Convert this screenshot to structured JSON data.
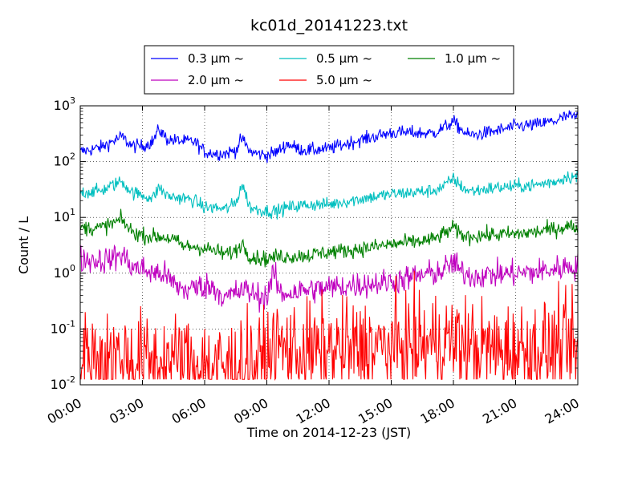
{
  "chart_data": {
    "type": "line",
    "title": "kc01d_20141223.txt",
    "xlabel": "Time on 2014-12-23 (JST)",
    "ylabel": "Count / L",
    "x_unit": "hours",
    "xlim": [
      0,
      24
    ],
    "ylim": [
      0.01,
      1000
    ],
    "yscale": "log",
    "grid": true,
    "legend_position": "top-center",
    "x_ticks": [
      {
        "value": 0,
        "label": "00:00"
      },
      {
        "value": 3,
        "label": "03:00"
      },
      {
        "value": 6,
        "label": "06:00"
      },
      {
        "value": 9,
        "label": "09:00"
      },
      {
        "value": 12,
        "label": "12:00"
      },
      {
        "value": 15,
        "label": "15:00"
      },
      {
        "value": 18,
        "label": "18:00"
      },
      {
        "value": 21,
        "label": "21:00"
      },
      {
        "value": 24,
        "label": "24:00"
      }
    ],
    "y_ticks": [
      {
        "value": 0.01,
        "base": "10",
        "exp": "-2"
      },
      {
        "value": 0.1,
        "base": "10",
        "exp": "-1"
      },
      {
        "value": 1,
        "base": "10",
        "exp": "0"
      },
      {
        "value": 10,
        "base": "10",
        "exp": "1"
      },
      {
        "value": 100,
        "base": "10",
        "exp": "2"
      },
      {
        "value": 1000,
        "base": "10",
        "exp": "3"
      }
    ],
    "series": [
      {
        "name": "0.3 μm ~",
        "color": "#0000ff",
        "x": [
          0,
          1,
          2,
          2.5,
          3,
          3.5,
          3.8,
          4.2,
          5,
          5.5,
          6,
          6.5,
          7,
          7.5,
          7.8,
          8.2,
          8.5,
          9,
          9.5,
          10,
          10.5,
          11,
          12,
          13,
          14,
          15,
          16,
          17,
          17.5,
          18,
          18.3,
          18.7,
          19,
          20,
          21,
          22,
          23,
          23.5,
          24
        ],
        "y": [
          150,
          180,
          280,
          190,
          190,
          230,
          380,
          250,
          230,
          230,
          150,
          140,
          140,
          160,
          260,
          150,
          140,
          130,
          150,
          210,
          170,
          160,
          170,
          220,
          270,
          330,
          330,
          320,
          400,
          520,
          400,
          300,
          300,
          350,
          430,
          460,
          550,
          650,
          620
        ],
        "noise": 0.06
      },
      {
        "name": "0.5 μm ~",
        "color": "#00bfbf",
        "x": [
          0,
          1,
          2,
          2.5,
          3,
          3.5,
          3.8,
          4.2,
          5,
          5.5,
          6,
          6.5,
          7,
          7.5,
          7.8,
          8.2,
          8.5,
          9,
          9.5,
          10,
          11,
          12,
          13,
          14,
          15,
          16,
          17,
          17.5,
          18,
          18.3,
          18.7,
          19,
          20,
          21,
          22,
          23,
          23.5,
          24
        ],
        "y": [
          28,
          30,
          45,
          28,
          25,
          22,
          35,
          24,
          22,
          20,
          15,
          15,
          14,
          18,
          40,
          15,
          14,
          13,
          13,
          15,
          17,
          17,
          20,
          23,
          26,
          28,
          30,
          35,
          50,
          38,
          30,
          30,
          34,
          36,
          38,
          45,
          55,
          52
        ],
        "noise": 0.06
      },
      {
        "name": "1.0 μm ~",
        "color": "#008000",
        "x": [
          0,
          1,
          2,
          2.5,
          3,
          3.5,
          4,
          4.5,
          5,
          5.5,
          6,
          6.5,
          7,
          7.5,
          7.8,
          8.2,
          8.5,
          9,
          9.5,
          10,
          11,
          12,
          13,
          14,
          15,
          16,
          17,
          17.5,
          18,
          18.3,
          18.7,
          19,
          20,
          21,
          22,
          23,
          23.5,
          24
        ],
        "y": [
          6.5,
          6.5,
          9,
          5.5,
          4.8,
          4.5,
          4.5,
          4,
          3,
          3,
          2.8,
          2.5,
          2.2,
          2.5,
          3.5,
          2,
          1.9,
          1.8,
          2,
          2,
          2.1,
          2.4,
          2.6,
          2.9,
          3.3,
          3.6,
          4,
          5,
          6.5,
          5,
          4.5,
          4.7,
          4.9,
          5,
          5.5,
          6.3,
          7,
          6.5
        ],
        "noise": 0.07
      },
      {
        "name": "2.0 μm ~",
        "color": "#bf00bf",
        "x": [
          0,
          1,
          1.5,
          2,
          2.5,
          3,
          3.5,
          4,
          4.5,
          5,
          5.5,
          6,
          6.5,
          7,
          7.5,
          8,
          8.5,
          9,
          9.3,
          9.7,
          10,
          11,
          12,
          13,
          14,
          15,
          16,
          17,
          17.5,
          18,
          18.3,
          18.7,
          19,
          20,
          21,
          22,
          23,
          23.5,
          24
        ],
        "y": [
          1.8,
          1.7,
          1.8,
          2.2,
          1.3,
          1.2,
          1,
          1,
          0.65,
          0.5,
          0.55,
          0.6,
          0.55,
          0.35,
          0.45,
          0.5,
          0.4,
          0.38,
          1,
          0.4,
          0.45,
          0.5,
          0.55,
          0.6,
          0.65,
          0.7,
          0.85,
          1,
          1.1,
          1.6,
          1.1,
          0.95,
          0.9,
          0.95,
          1,
          1.05,
          1.2,
          1.35,
          1.3
        ],
        "noise": 0.12
      },
      {
        "name": "5.0 μm ~",
        "color": "#ff0000",
        "x": [
          0,
          1,
          2,
          3,
          4,
          5,
          6,
          7,
          8,
          9,
          9.5,
          10,
          11,
          12,
          13,
          14,
          15,
          16,
          17,
          18,
          19,
          20,
          21,
          22,
          23,
          24
        ],
        "y": [
          0.03,
          0.028,
          0.03,
          0.025,
          0.025,
          0.025,
          0.022,
          0.02,
          0.022,
          0.025,
          0.05,
          0.04,
          0.038,
          0.04,
          0.042,
          0.045,
          0.045,
          0.05,
          0.055,
          0.06,
          0.045,
          0.04,
          0.04,
          0.042,
          0.045,
          0.04
        ],
        "noise": 0.45
      }
    ]
  }
}
